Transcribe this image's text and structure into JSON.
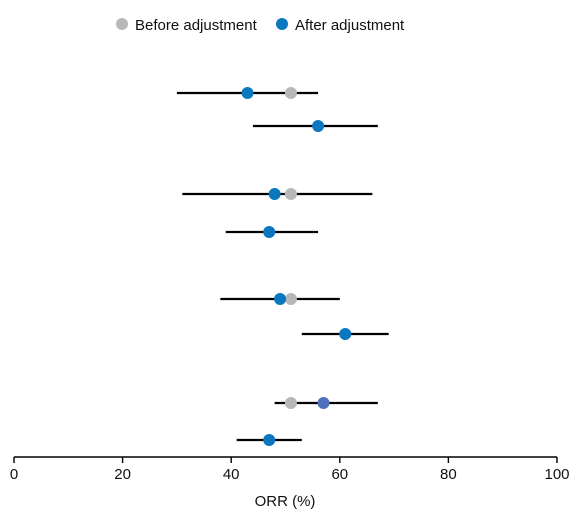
{
  "chart_data": {
    "type": "scatter",
    "subtype": "forest-plot",
    "title": "",
    "xlabel": "ORR (%)",
    "ylabel": "",
    "xlim": [
      0,
      100
    ],
    "xticks": [
      0,
      20,
      40,
      60,
      80,
      100
    ],
    "grid": false,
    "legend": {
      "placement": "top-center",
      "entries": [
        {
          "label": "Before adjustment",
          "color": "#b8b8b8"
        },
        {
          "label": "After adjustment",
          "color": "#0a78bf"
        }
      ]
    },
    "colors": {
      "before": "#b8b8b8",
      "after": "#0a78bf",
      "after_highlight": "#4f6fbf",
      "ci_line": "#000000"
    },
    "rows": [
      {
        "group": 1,
        "ci": [
          30,
          56
        ],
        "before": 51,
        "after": 43
      },
      {
        "group": 1,
        "ci": [
          44,
          67
        ],
        "before": null,
        "after": 56
      },
      {
        "group": 2,
        "ci": [
          31,
          66
        ],
        "before": 51,
        "after": 48
      },
      {
        "group": 2,
        "ci": [
          39,
          56
        ],
        "before": null,
        "after": 47
      },
      {
        "group": 3,
        "ci": [
          38,
          60
        ],
        "before": 51,
        "after": 49
      },
      {
        "group": 3,
        "ci": [
          53,
          69
        ],
        "before": null,
        "after": 61
      },
      {
        "group": 4,
        "ci": [
          48,
          67
        ],
        "before": 51,
        "after": 57,
        "after_color": "#4f6fbf"
      },
      {
        "group": 4,
        "ci": [
          41,
          53
        ],
        "before": null,
        "after": 47
      }
    ]
  }
}
